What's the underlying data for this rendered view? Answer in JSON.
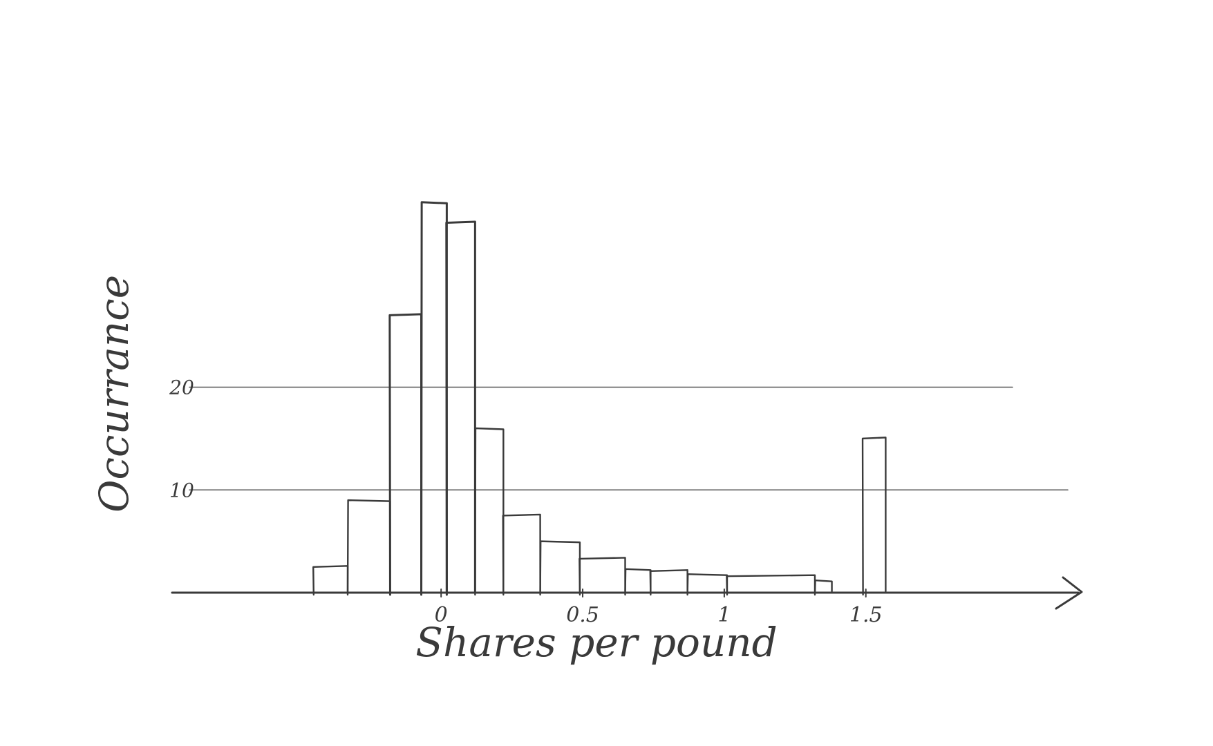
{
  "chart_data": {
    "type": "bar",
    "title": "",
    "xlabel": "Shares per pound",
    "ylabel": "Occurrance",
    "xlim": [
      -0.95,
      2.25
    ],
    "ylim": [
      0,
      40
    ],
    "grid_y": true,
    "legend": "none",
    "style": "hand-drawn sketch, greyscale",
    "colors": {
      "stroke": "#3a3a3a",
      "grid": "#555555",
      "background": "#ffffff"
    },
    "x_ticks": [
      {
        "value": 0,
        "label": "0"
      },
      {
        "value": 0.5,
        "label": "0.5"
      },
      {
        "value": 1,
        "label": "1"
      },
      {
        "value": 1.5,
        "label": "1.5"
      }
    ],
    "y_ticks": [
      {
        "value": 10,
        "label": "10"
      },
      {
        "value": 20,
        "label": "20"
      }
    ],
    "bins": [
      {
        "x0": -0.45,
        "x1": -0.33,
        "value": 2.5
      },
      {
        "x0": -0.33,
        "x1": -0.18,
        "value": 9
      },
      {
        "x0": -0.18,
        "x1": -0.07,
        "value": 27
      },
      {
        "x0": -0.07,
        "x1": 0.02,
        "value": 38
      },
      {
        "x0": 0.02,
        "x1": 0.12,
        "value": 36
      },
      {
        "x0": 0.12,
        "x1": 0.22,
        "value": 16
      },
      {
        "x0": 0.22,
        "x1": 0.35,
        "value": 7.5
      },
      {
        "x0": 0.35,
        "x1": 0.49,
        "value": 5
      },
      {
        "x0": 0.49,
        "x1": 0.65,
        "value": 3.3
      },
      {
        "x0": 0.65,
        "x1": 0.74,
        "value": 2.3
      },
      {
        "x0": 0.74,
        "x1": 0.87,
        "value": 2.1
      },
      {
        "x0": 0.87,
        "x1": 1.01,
        "value": 1.8
      },
      {
        "x0": 1.01,
        "x1": 1.32,
        "value": 1.6
      },
      {
        "x0": 1.32,
        "x1": 1.38,
        "value": 1.2
      },
      {
        "x0": 1.49,
        "x1": 1.57,
        "value": 15
      }
    ]
  }
}
